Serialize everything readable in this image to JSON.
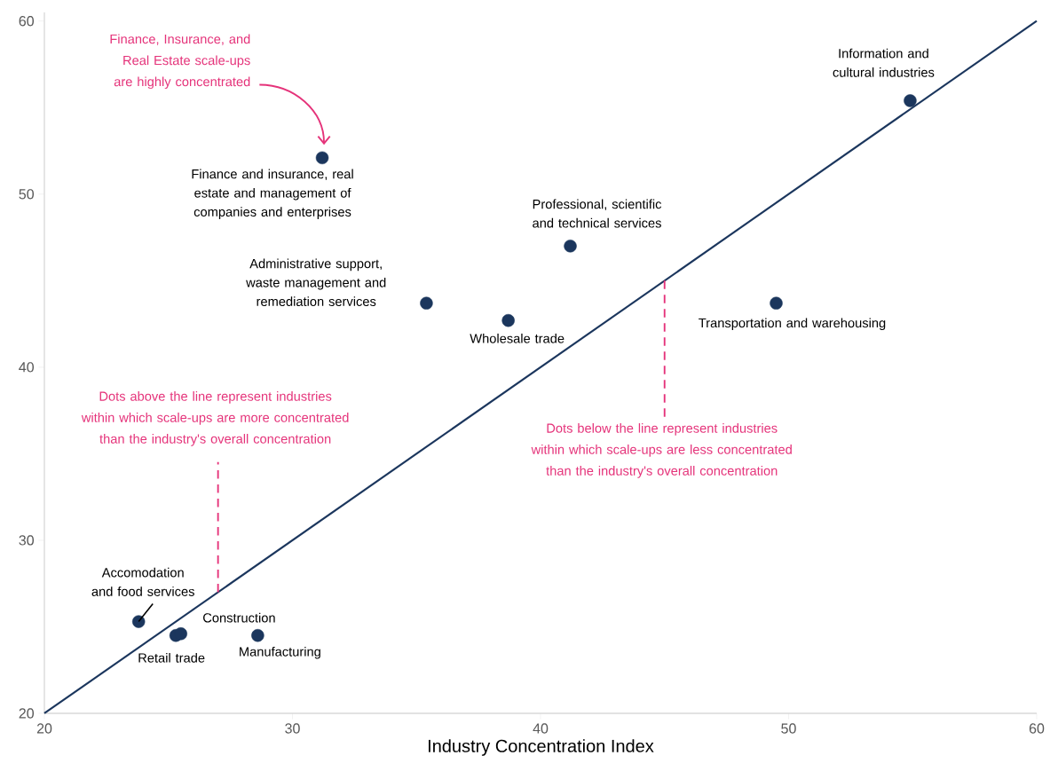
{
  "chart_data": {
    "type": "scatter",
    "xlabel": "Industry Concentration Index",
    "xlim": [
      20,
      60
    ],
    "ylim": [
      20,
      60.5
    ],
    "xticks": [
      20,
      30,
      40,
      50,
      60
    ],
    "yticks": [
      20,
      30,
      40,
      50,
      60
    ],
    "grid": false,
    "series": [
      {
        "name": "Information and cultural industries",
        "color": "#1b365d",
        "x": [
          54.9
        ],
        "values": [
          55.4
        ]
      },
      {
        "name": "Finance and insurance, real estate and management of companies and enterprises",
        "color": "#1b365d",
        "x": [
          31.2
        ],
        "values": [
          52.1
        ]
      },
      {
        "name": "Professional, scientific and technical services",
        "color": "#1b365d",
        "x": [
          41.2
        ],
        "values": [
          47.0
        ]
      },
      {
        "name": "Administrative support, waste management and remediation services",
        "color": "#1b365d",
        "x": [
          35.4
        ],
        "values": [
          43.7
        ]
      },
      {
        "name": "Wholesale trade",
        "color": "#1b365d",
        "x": [
          38.7
        ],
        "values": [
          42.7
        ]
      },
      {
        "name": "Transportation and warehousing",
        "color": "#1b365d",
        "x": [
          49.5
        ],
        "values": [
          43.7
        ]
      },
      {
        "name": "Accomodation and food services",
        "color": "#1b365d",
        "x": [
          23.8
        ],
        "values": [
          25.3
        ]
      },
      {
        "name": "Retail trade",
        "color": "#1b365d",
        "x": [
          25.3
        ],
        "values": [
          24.5
        ]
      },
      {
        "name": "Construction",
        "color": "#1b365d",
        "x": [
          25.5
        ],
        "values": [
          24.6
        ]
      },
      {
        "name": "Manufacturing",
        "color": "#1b365d",
        "x": [
          28.6
        ],
        "values": [
          24.5
        ]
      },
      {
        "type": "line",
        "marker": "none",
        "color": "#1b365d",
        "x": [
          20,
          60
        ],
        "values": [
          20,
          60
        ]
      }
    ],
    "annotations": [
      "Finance, Insurance, and Real Estate scale-ups are highly concentrated",
      {
        "text": "Dots above the line represent industries within which scale-ups are more concentrated than the industry's overall concentration",
        "x": 27,
        "y": 27
      },
      {
        "text": "Dots below the line represent industries within which scale-ups are less concentrated than the industry's overall concentration",
        "x": 45,
        "y": 45
      }
    ]
  }
}
